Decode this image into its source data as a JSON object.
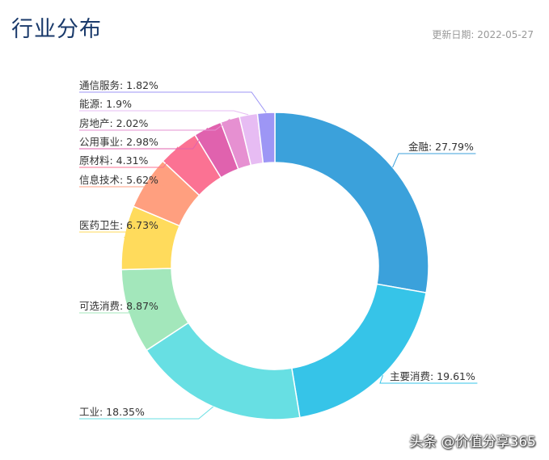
{
  "header": {
    "title": "行业分布",
    "update_label": "更新日期:",
    "update_date": "2022-05-27"
  },
  "watermark": "头条 @价值分享365",
  "chart_data": {
    "type": "pie",
    "donut": true,
    "title": "行业分布",
    "legend": "none",
    "label_format": "name: value%",
    "slices": [
      {
        "name": "金融",
        "value": 27.79,
        "color": "#3ba1db"
      },
      {
        "name": "主要消费",
        "value": 19.61,
        "color": "#36c4e8"
      },
      {
        "name": "工业",
        "value": 18.35,
        "color": "#67dfe3"
      },
      {
        "name": "可选消费",
        "value": 8.87,
        "color": "#a3e7bb"
      },
      {
        "name": "医药卫生",
        "value": 6.73,
        "color": "#ffdb5c"
      },
      {
        "name": "信息技术",
        "value": 5.62,
        "color": "#ff9f7f"
      },
      {
        "name": "原材料",
        "value": 4.31,
        "color": "#fb7293"
      },
      {
        "name": "公用事业",
        "value": 2.98,
        "color": "#e062ae"
      },
      {
        "name": "房地产",
        "value": 2.02,
        "color": "#e690d1"
      },
      {
        "name": "能源",
        "value": 1.9,
        "color": "#e7bcf3"
      },
      {
        "name": "通信服务",
        "value": 1.82,
        "color": "#9d96f5"
      }
    ]
  }
}
